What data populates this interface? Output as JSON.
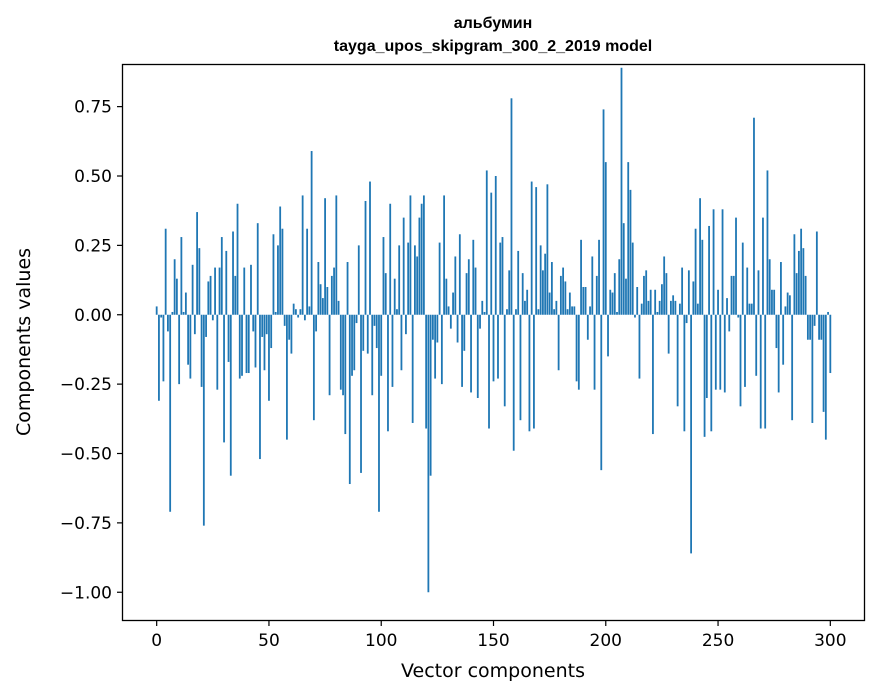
{
  "chart_data": {
    "type": "bar",
    "title": "альбумин",
    "subtitle": "tayga_upos_skipgram_300_2_2019 model",
    "xlabel": "Vector components",
    "ylabel": "Components values",
    "xlim": [
      -15,
      315
    ],
    "ylim": [
      -1.1,
      0.9
    ],
    "xticks": [
      0,
      50,
      100,
      150,
      200,
      250,
      300
    ],
    "yticks": [
      -1.0,
      -0.75,
      -0.5,
      -0.25,
      0.0,
      0.25,
      0.5,
      0.75
    ],
    "ytick_labels": [
      "−1.00",
      "−0.75",
      "−0.50",
      "−0.25",
      "0.00",
      "0.25",
      "0.50",
      "0.75"
    ],
    "grid": false,
    "bar_color": "#1f77b4",
    "series": [
      {
        "x_start": 0,
        "values": [
          0.03,
          -0.31,
          -0.01,
          -0.24,
          0.31,
          -0.06,
          -0.71,
          0.01,
          0.2,
          0.13,
          -0.25,
          0.28,
          0.01,
          0.08,
          -0.18,
          -0.23,
          0.18,
          -0.07,
          0.37,
          0.24,
          -0.26,
          -0.76,
          -0.08,
          0.12,
          0.14,
          -0.02,
          0.17,
          -0.27,
          0.17,
          0.28,
          -0.46,
          0.23,
          -0.17,
          -0.58,
          0.3,
          0.14,
          0.4,
          -0.23,
          -0.22,
          0.17,
          -0.21,
          -0.21,
          0.18,
          -0.06,
          -0.19,
          0.33,
          -0.52,
          -0.08,
          -0.2,
          -0.07,
          -0.31,
          -0.12,
          0.29,
          0.01,
          0.25,
          0.39,
          0.31,
          -0.04,
          -0.45,
          -0.09,
          -0.14,
          0.04,
          0.02,
          -0.01,
          0.02,
          0.43,
          -0.02,
          0.31,
          0.03,
          0.59,
          -0.38,
          -0.06,
          0.19,
          0.11,
          0.06,
          0.42,
          0.1,
          -0.29,
          0.14,
          0.17,
          0.43,
          0.05,
          -0.27,
          -0.29,
          -0.43,
          0.19,
          -0.61,
          -0.22,
          -0.2,
          -0.03,
          0.25,
          -0.57,
          -0.13,
          0.41,
          -0.14,
          0.48,
          -0.29,
          -0.04,
          -0.12,
          -0.71,
          -0.22,
          0.28,
          0.15,
          -0.42,
          0.4,
          -0.26,
          0.13,
          0.02,
          0.25,
          -0.2,
          0.35,
          -0.07,
          0.26,
          0.43,
          -0.39,
          0.25,
          0.21,
          0.35,
          0.4,
          0.43,
          -0.41,
          -1.0,
          -0.58,
          -0.09,
          -0.23,
          -0.1,
          0.26,
          -0.25,
          0.43,
          0.13,
          0.03,
          -0.05,
          0.08,
          0.21,
          -0.1,
          0.29,
          -0.26,
          -0.13,
          0.15,
          0.2,
          -0.28,
          0.27,
          0.17,
          -0.3,
          -0.05,
          0.05,
          0.01,
          0.52,
          -0.41,
          0.44,
          -0.24,
          0.5,
          -0.23,
          0.26,
          0.28,
          -0.33,
          0.02,
          0.16,
          0.78,
          -0.49,
          0.02,
          0.23,
          -0.38,
          0.15,
          0.05,
          0.09,
          -0.42,
          0.48,
          -0.41,
          0.46,
          0.02,
          0.25,
          0.16,
          0.22,
          0.47,
          0.08,
          0.19,
          0.02,
          0.05,
          -0.2,
          0.14,
          0.17,
          0.12,
          0.02,
          0.08,
          0.03,
          0.03,
          -0.24,
          -0.27,
          0.27,
          0.1,
          0.1,
          -0.09,
          0.03,
          0.21,
          -0.27,
          0.14,
          0.27,
          -0.56,
          0.74,
          0.55,
          -0.15,
          0.09,
          0.08,
          0.15,
          0.01,
          0.2,
          0.89,
          0.33,
          0.13,
          0.55,
          0.45,
          0.26,
          -0.01,
          0.1,
          -0.23,
          0.04,
          0.14,
          0.16,
          0.05,
          0.09,
          -0.43,
          0.09,
          0.01,
          0.05,
          0.11,
          0.21,
          0.15,
          -0.14,
          0.05,
          0.07,
          0.05,
          -0.33,
          0.04,
          0.17,
          -0.42,
          -0.03,
          0.16,
          -0.86,
          0.12,
          0.31,
          0.04,
          0.42,
          0.27,
          -0.44,
          -0.3,
          0.32,
          -0.42,
          0.38,
          -0.27,
          0.09,
          -0.27,
          0.38,
          -0.28,
          0.06,
          -0.06,
          0.14,
          0.14,
          0.35,
          -0.01,
          -0.33,
          0.26,
          -0.26,
          0.17,
          0.04,
          0.04,
          0.71,
          -0.22,
          0.16,
          -0.41,
          0.35,
          -0.41,
          0.52,
          0.2,
          0.09,
          0.09,
          -0.12,
          -0.28,
          0.19,
          -0.18,
          0.03,
          0.08,
          0.07,
          -0.38,
          0.29,
          0.15,
          0.23,
          0.31,
          0.24,
          0.14,
          -0.09,
          -0.09,
          -0.39,
          -0.04,
          0.3,
          -0.09,
          -0.09,
          -0.35,
          -0.45,
          0.01,
          -0.21
        ]
      }
    ]
  }
}
